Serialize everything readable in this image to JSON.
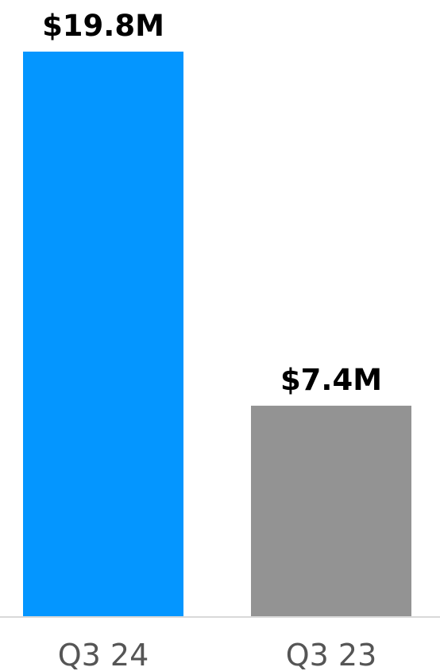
{
  "chart_data": {
    "type": "bar",
    "categories": [
      "Q3 24",
      "Q3 23"
    ],
    "values": [
      19.8,
      7.4
    ],
    "data_labels": [
      "$19.8M",
      "$7.4M"
    ],
    "colors": [
      "#0496FF",
      "#939393"
    ],
    "axis_color": "#D9D9D9",
    "ylim": [
      0,
      19.8
    ],
    "grid": false,
    "legend": "none"
  }
}
